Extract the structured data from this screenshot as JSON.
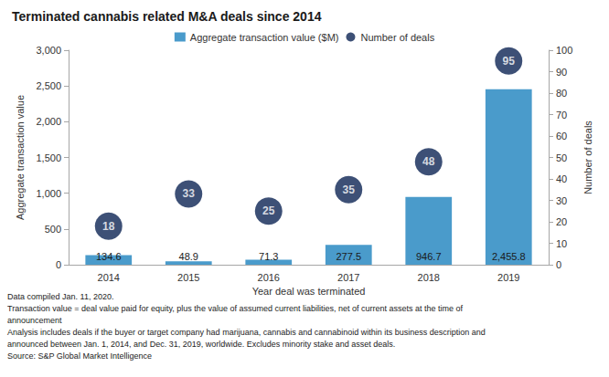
{
  "chart_data": {
    "type": "bar",
    "title": "Terminated cannabis related M&A deals since 2014",
    "x_label": "Year deal was terminated",
    "y_label": "Aggregate transaction value",
    "y2_label": "Number of deals",
    "categories": [
      "2014",
      "2015",
      "2016",
      "2017",
      "2018",
      "2019"
    ],
    "series": [
      {
        "name": "Aggregate transaction value ($M)",
        "type": "bar",
        "color": "#4a9bcb",
        "values": [
          134.6,
          48.9,
          71.3,
          277.5,
          946.7,
          2455.8
        ],
        "value_labels": [
          "134.6",
          "48.9",
          "71.3",
          "277.5",
          "946.7",
          "2,455.8"
        ]
      },
      {
        "name": "Number of deals",
        "type": "scatter",
        "axis": "y2",
        "color": "#0d2454",
        "marker": "circle",
        "values": [
          18,
          33,
          25,
          35,
          48,
          95
        ]
      }
    ],
    "ylim": [
      0,
      3000
    ],
    "yticks": [
      0,
      500,
      {
        "value": 1000,
        "label": "1,000"
      },
      {
        "value": 1500,
        "label": "1,500"
      },
      {
        "value": 2000,
        "label": "2,000"
      },
      {
        "value": 2500,
        "label": "2,500"
      },
      {
        "value": 3000,
        "label": "3,000"
      }
    ],
    "y2lim": [
      0,
      100
    ],
    "y2ticks": [
      0,
      10,
      20,
      30,
      40,
      50,
      60,
      70,
      80,
      90,
      100
    ],
    "grid": false,
    "legend": "top",
    "data_labels": true,
    "annotations": [
      "Data compiled Jan. 11, 2020.",
      "Transaction value = deal value paid for equity, plus the value of assumed current liabilities, net of current assets at the time of",
      "announcement",
      "Analysis includes deals if the buyer or target company had marijuana, cannabis and cannabinoid within its business description and",
      "announced between Jan. 1, 2014, and Dec. 31, 2019, worldwide. Excludes minority stake and asset deals.",
      "Source: S&P Global Market Intelligence"
    ]
  }
}
